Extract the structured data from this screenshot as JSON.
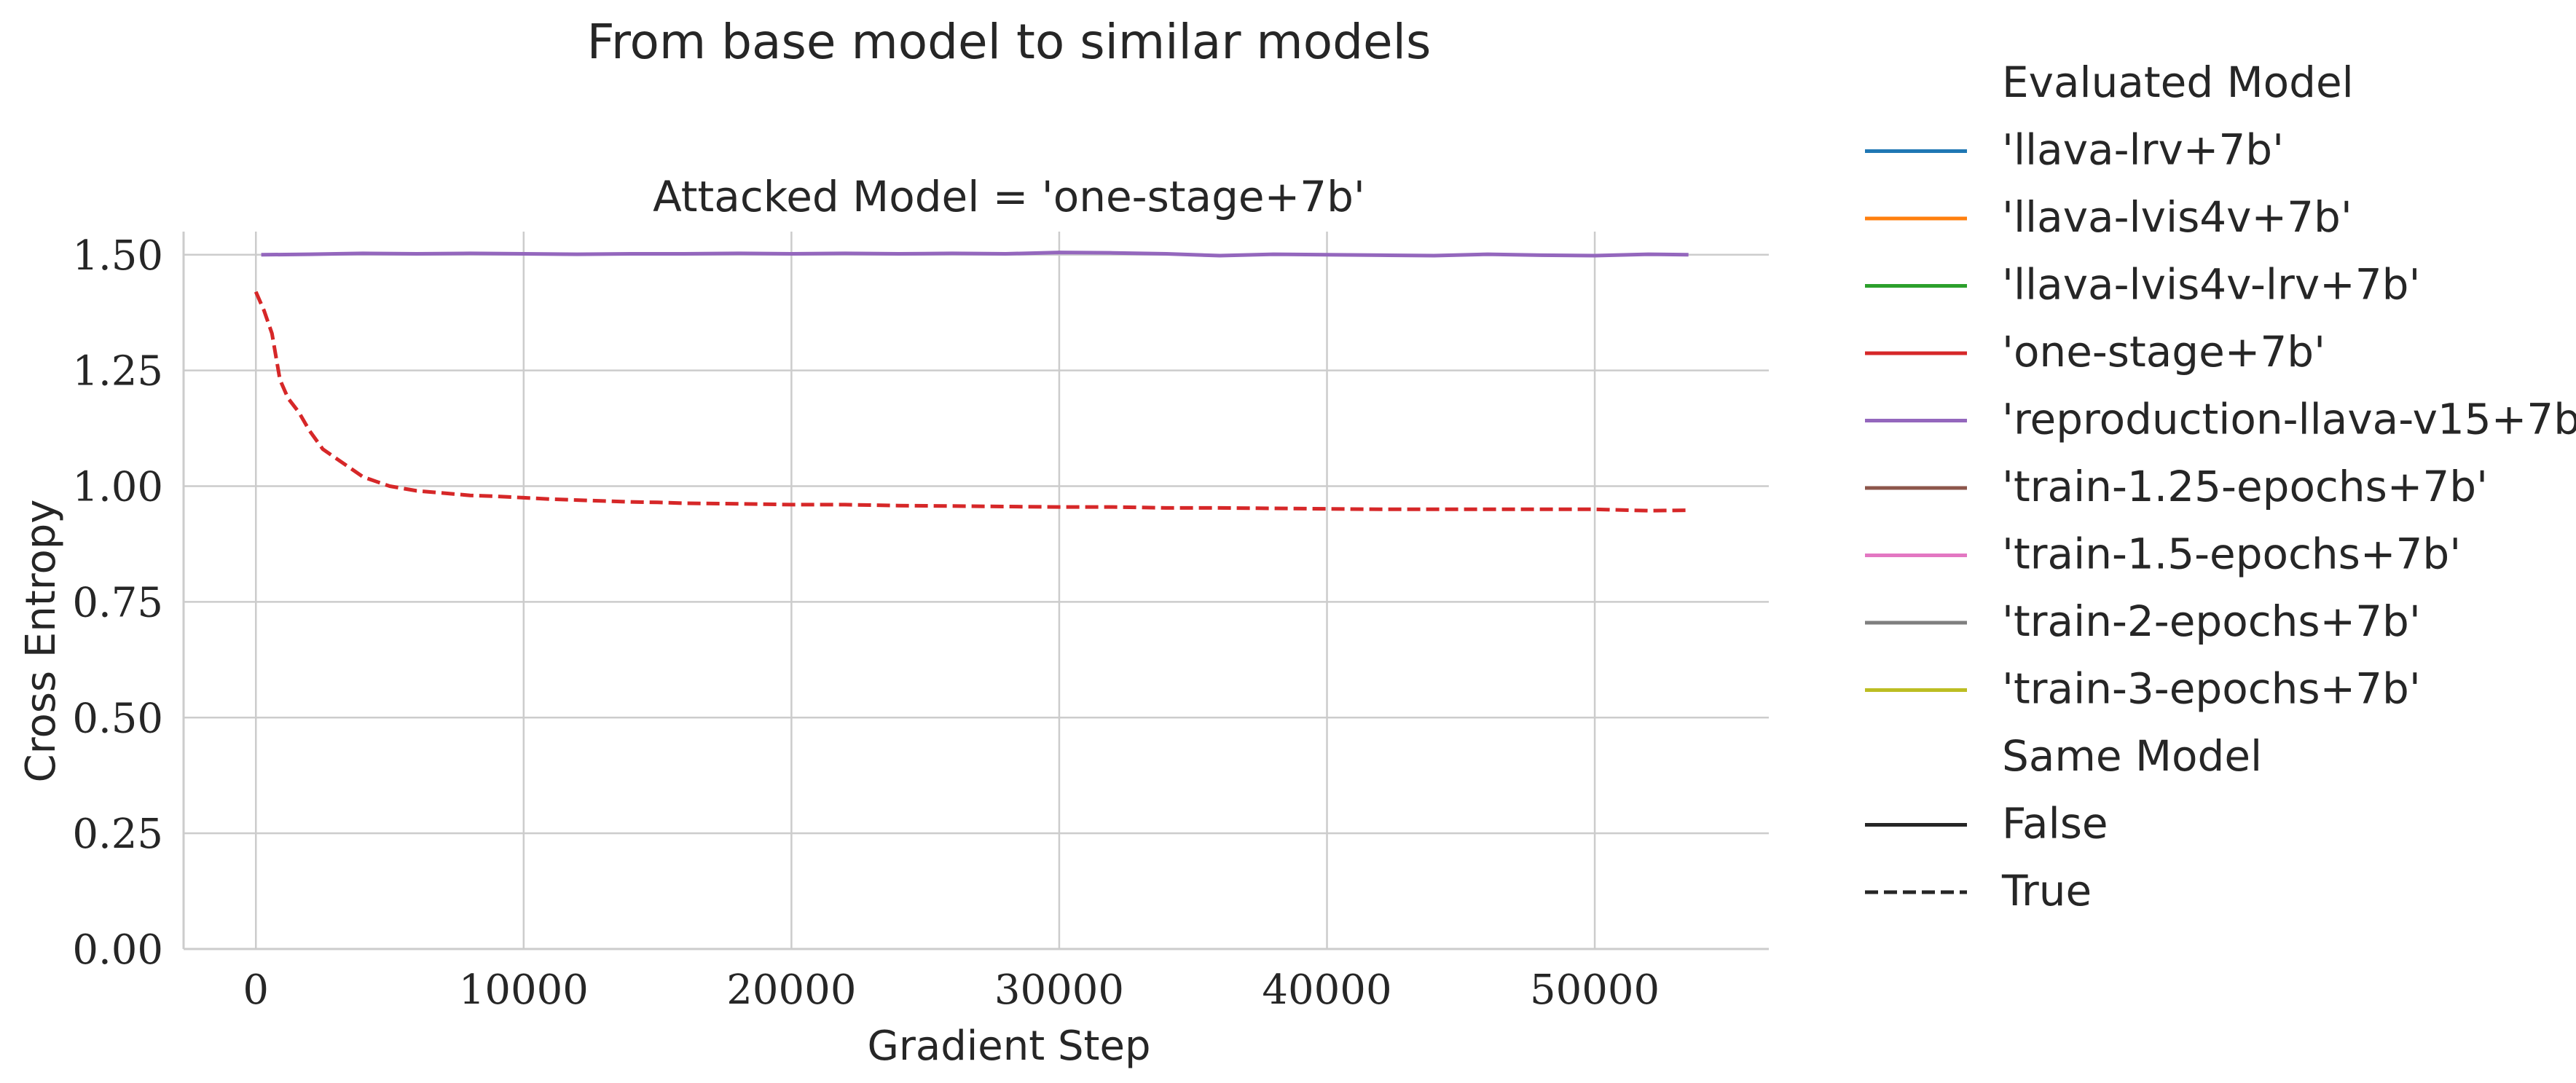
{
  "suptitle": "From base model to similar models",
  "chart_data": {
    "type": "line",
    "title": "Attacked Model = 'one-stage+7b'",
    "xlabel": "Gradient Step",
    "ylabel": "Cross Entropy",
    "xlim": [
      -2700,
      56500
    ],
    "ylim": [
      0,
      1.55
    ],
    "xticks": [
      0,
      10000,
      20000,
      30000,
      40000,
      50000
    ],
    "xtick_labels": [
      "0",
      "10000",
      "20000",
      "30000",
      "40000",
      "50000"
    ],
    "yticks": [
      0,
      0.25,
      0.5,
      0.75,
      1.0,
      1.25,
      1.5
    ],
    "ytick_labels": [
      "0.00",
      "0.25",
      "0.50",
      "0.75",
      "1.00",
      "1.25",
      "1.50"
    ],
    "grid": true,
    "legend_placement": "outside-right",
    "series": [
      {
        "name": "'reproduction-llava-v15+7b'",
        "color": "#9467bd",
        "style": "solid",
        "x": [
          200,
          2000,
          4000,
          6000,
          8000,
          10000,
          12000,
          14000,
          16000,
          18000,
          20000,
          22000,
          24000,
          26000,
          28000,
          30000,
          32000,
          34000,
          36000,
          38000,
          40000,
          42000,
          44000,
          46000,
          48000,
          50000,
          52000,
          53500
        ],
        "y": [
          1.5,
          1.501,
          1.503,
          1.502,
          1.503,
          1.502,
          1.501,
          1.502,
          1.502,
          1.503,
          1.502,
          1.503,
          1.502,
          1.503,
          1.502,
          1.505,
          1.504,
          1.502,
          1.498,
          1.501,
          1.5,
          1.499,
          1.498,
          1.501,
          1.499,
          1.498,
          1.501,
          1.5
        ]
      },
      {
        "name": "'one-stage+7b'",
        "color": "#d62728",
        "style": "dashed",
        "x": [
          0,
          300,
          600,
          900,
          1200,
          1600,
          2000,
          2500,
          3000,
          3500,
          4000,
          4500,
          5000,
          5500,
          6000,
          7000,
          8000,
          9000,
          10000,
          11000,
          12000,
          13000,
          14000,
          15000,
          16000,
          18000,
          20000,
          22000,
          24000,
          26000,
          28000,
          30000,
          32000,
          34000,
          36000,
          38000,
          40000,
          42000,
          44000,
          46000,
          48000,
          50000,
          52000,
          53500
        ],
        "y": [
          1.42,
          1.38,
          1.33,
          1.23,
          1.19,
          1.16,
          1.12,
          1.08,
          1.06,
          1.04,
          1.02,
          1.01,
          1.0,
          0.995,
          0.99,
          0.985,
          0.98,
          0.978,
          0.975,
          0.972,
          0.97,
          0.968,
          0.966,
          0.965,
          0.963,
          0.962,
          0.96,
          0.96,
          0.958,
          0.957,
          0.956,
          0.955,
          0.955,
          0.953,
          0.953,
          0.952,
          0.951,
          0.95,
          0.95,
          0.95,
          0.95,
          0.95,
          0.947,
          0.948
        ]
      }
    ]
  },
  "legend": {
    "hue_title": "Evaluated Model",
    "hue_entries": [
      {
        "label": "'llava-lrv+7b'",
        "color": "#1f77b4"
      },
      {
        "label": "'llava-lvis4v+7b'",
        "color": "#ff7f0e"
      },
      {
        "label": "'llava-lvis4v-lrv+7b'",
        "color": "#2ca02c"
      },
      {
        "label": "'one-stage+7b'",
        "color": "#d62728"
      },
      {
        "label": "'reproduction-llava-v15+7b'",
        "color": "#9467bd"
      },
      {
        "label": "'train-1.25-epochs+7b'",
        "color": "#8c564b"
      },
      {
        "label": "'train-1.5-epochs+7b'",
        "color": "#e377c2"
      },
      {
        "label": "'train-2-epochs+7b'",
        "color": "#7f7f7f"
      },
      {
        "label": "'train-3-epochs+7b'",
        "color": "#bcbd22"
      }
    ],
    "style_title": "Same Model",
    "style_entries": [
      {
        "label": "False",
        "dash": "solid"
      },
      {
        "label": "True",
        "dash": "dashed"
      }
    ]
  }
}
